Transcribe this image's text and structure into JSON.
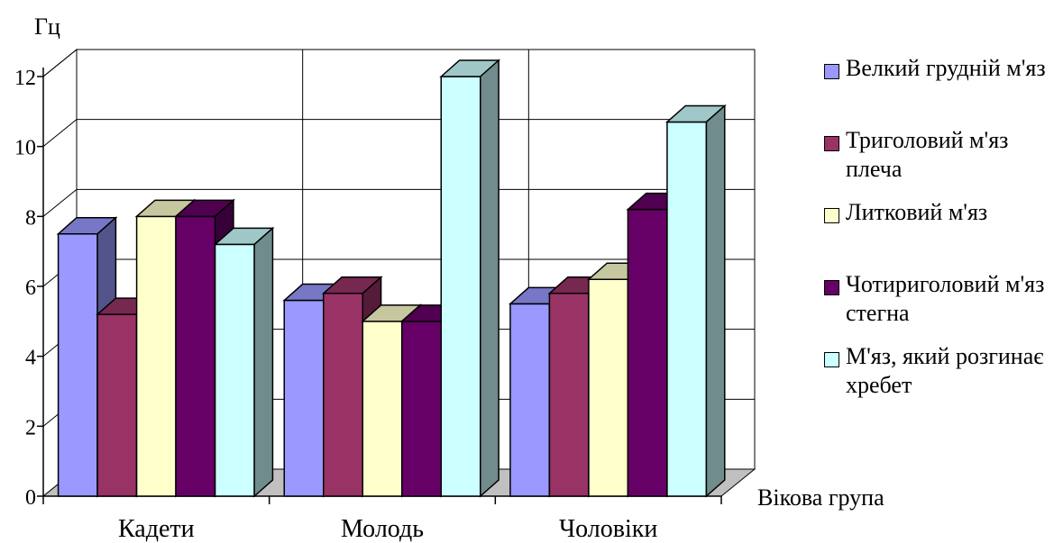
{
  "chart_data": {
    "type": "bar",
    "ylabel": "Гц",
    "xlabel": "Вікова група",
    "ylim": [
      0,
      12
    ],
    "yticks": [
      "0",
      "2",
      "4",
      "6",
      "8",
      "10",
      "12"
    ],
    "categories": [
      "Кадети",
      "Молодь",
      "Чоловіки"
    ],
    "grid": true,
    "legend_position": "right",
    "series": [
      {
        "name": "Велкий грудній м'яз",
        "color": "#9999ff",
        "values": [
          7.5,
          5.6,
          5.5
        ]
      },
      {
        "name": "Триголовий м'яз плеча",
        "color": "#993366",
        "values": [
          5.2,
          5.8,
          5.8
        ]
      },
      {
        "name": "Литковий м'яз",
        "color": "#ffffcc",
        "values": [
          8.0,
          5.0,
          6.2
        ]
      },
      {
        "name": "Чотириголовий м'яз стегна",
        "color": "#660066",
        "values": [
          8.0,
          5.0,
          8.2
        ]
      },
      {
        "name": "М'яз, який розгинає хребет",
        "color": "#ccffff",
        "values": [
          7.2,
          12.0,
          10.7
        ]
      }
    ]
  }
}
